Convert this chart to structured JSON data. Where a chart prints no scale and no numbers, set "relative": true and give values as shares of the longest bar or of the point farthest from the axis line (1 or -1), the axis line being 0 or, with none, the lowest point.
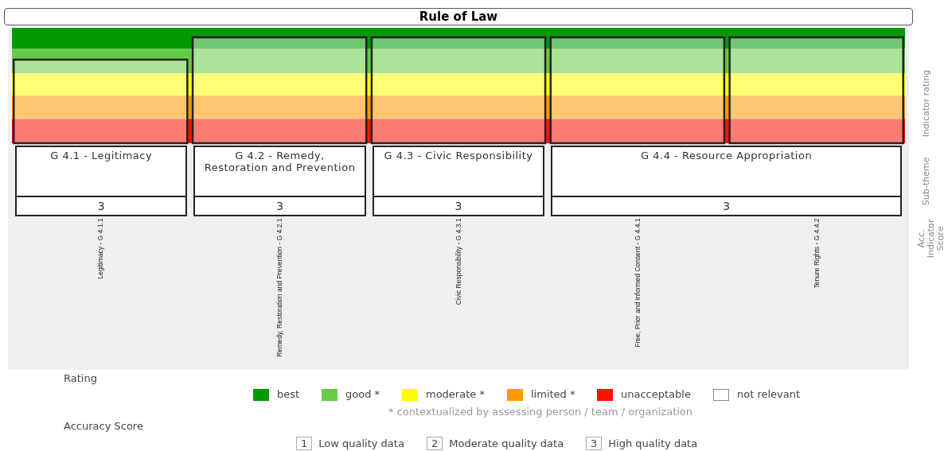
{
  "chart_data": {
    "type": "bar",
    "title": "Rule of Law",
    "relative": true,
    "legend": "bottom",
    "legend_title": "Rating",
    "categories": [
      "Legitimacy - G 4.1.1",
      "Remedy, Restoration and Prevention - G 4.2.1",
      "Civic Responsibility - G 4.3.1",
      "Free, Prior and Informed Consent - G 4.4.1",
      "Tenure Rights - G 4.4.2"
    ],
    "values": [
      0.79,
      1,
      1,
      1,
      1
    ],
    "color": "#ffffff",
    "bands": [
      {
        "axis": "y",
        "from": 0.89,
        "to": 1.09,
        "label": "best",
        "color": "#009900"
      },
      {
        "axis": "y",
        "from": 0.66,
        "to": 0.89,
        "label": "good *",
        "color": "#66cc44"
      },
      {
        "axis": "y",
        "from": 0.45,
        "to": 0.66,
        "label": "moderate *",
        "color": "#ffff00"
      },
      {
        "axis": "y",
        "from": 0.23,
        "to": 0.45,
        "label": "limited *",
        "color": "#ff9900"
      },
      {
        "axis": "y",
        "from": 0,
        "to": 0.23,
        "label": "unacceptable",
        "color": "#ff1100"
      }
    ],
    "annotations": [
      "G 4.1 - Legitimacy",
      "G 4.2 - Remedy, Restoration and Prevention",
      "G 4.3 - Civic Responsibility",
      "G 4.4 - Resource Appropriation",
      "3",
      "3",
      "3",
      "3",
      "Indicator rating",
      "Sub-theme",
      "Acc. Indicator Score",
      "not relevant",
      "* contextualized by assessing person / team / organization",
      "Accuracy Score",
      "1 Low quality data",
      "2 Moderate quality data",
      "3 High quality data"
    ]
  }
}
